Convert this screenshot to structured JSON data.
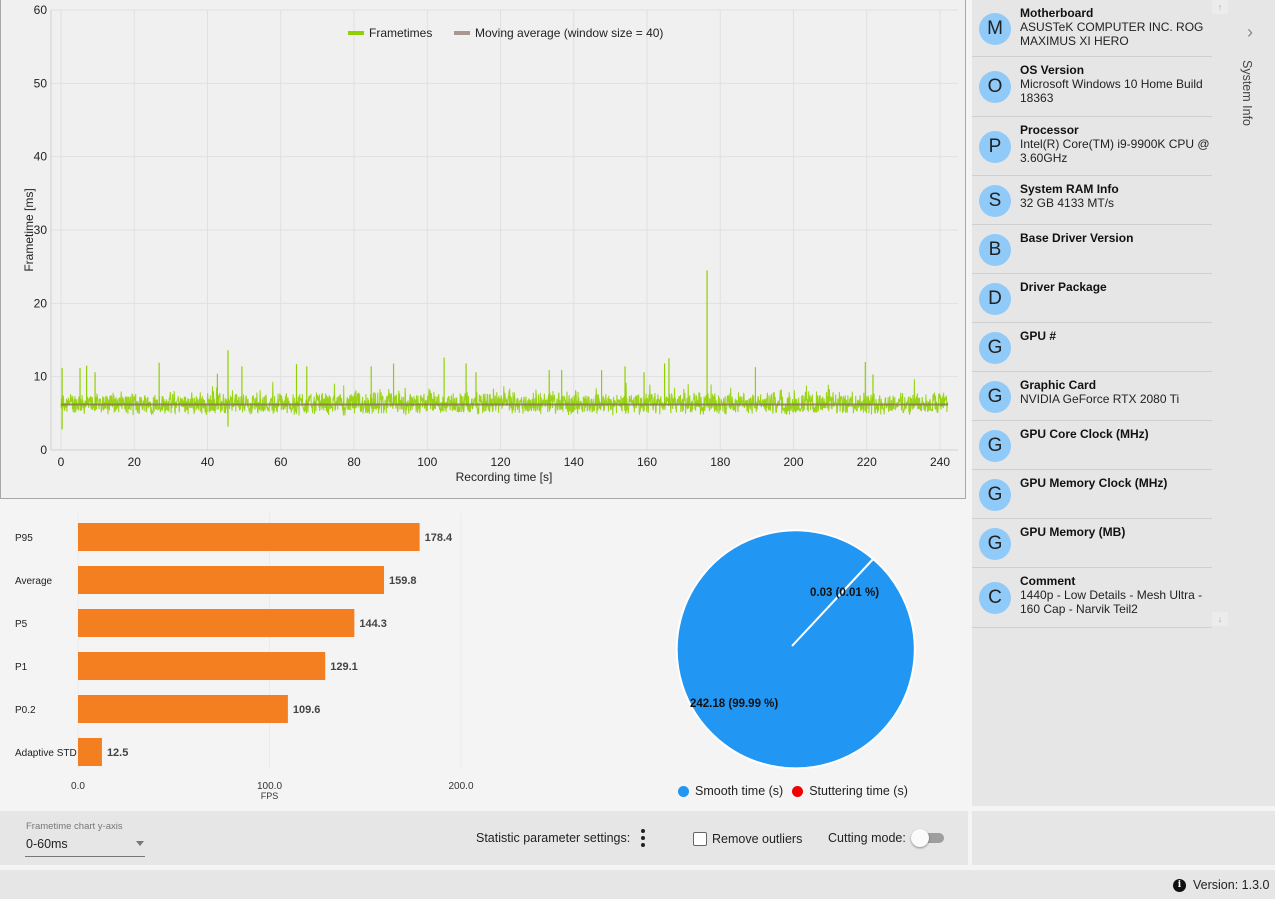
{
  "frametime_chart": {
    "type": "line",
    "title": "",
    "xlabel": "Recording time [s]",
    "ylabel": "Frametime [ms]",
    "xlim": [
      0,
      242.2
    ],
    "ylim": [
      0,
      60
    ],
    "xticks": [
      0,
      20,
      40,
      60,
      80,
      100,
      120,
      140,
      160,
      180,
      200,
      220,
      240
    ],
    "yticks": [
      0,
      10,
      20,
      30,
      40,
      50,
      60
    ],
    "grid": true,
    "legend": {
      "placement": "top-center",
      "entries": [
        {
          "name": "Frametimes",
          "color": "#8fd000"
        },
        {
          "name": "Moving average (window size = 40)",
          "color": "#a89890"
        }
      ]
    },
    "series_summary": {
      "baseline_ms": 6.2,
      "typical_range_ms": [
        4.5,
        8.5
      ],
      "spikes": [
        {
          "t": 0.3,
          "ms": 11.2
        },
        {
          "t": 0.3,
          "ms": 2.8
        },
        {
          "t": 5.2,
          "ms": 11.2
        },
        {
          "t": 7.0,
          "ms": 11.5
        },
        {
          "t": 9.3,
          "ms": 10.6
        },
        {
          "t": 26.8,
          "ms": 11.9
        },
        {
          "t": 42.7,
          "ms": 10.4
        },
        {
          "t": 45.6,
          "ms": 13.6
        },
        {
          "t": 45.6,
          "ms": 3.2
        },
        {
          "t": 49.4,
          "ms": 11.4
        },
        {
          "t": 64.3,
          "ms": 11.7
        },
        {
          "t": 67.1,
          "ms": 11.4
        },
        {
          "t": 84.7,
          "ms": 11.4
        },
        {
          "t": 90.8,
          "ms": 11.8
        },
        {
          "t": 104.6,
          "ms": 12.6
        },
        {
          "t": 110.6,
          "ms": 11.8
        },
        {
          "t": 113.3,
          "ms": 10.6
        },
        {
          "t": 133.3,
          "ms": 10.9
        },
        {
          "t": 136.7,
          "ms": 10.9
        },
        {
          "t": 147.6,
          "ms": 10.9
        },
        {
          "t": 154.0,
          "ms": 11.4
        },
        {
          "t": 159.2,
          "ms": 10.6
        },
        {
          "t": 164.8,
          "ms": 11.8
        },
        {
          "t": 166.0,
          "ms": 12.5
        },
        {
          "t": 176.4,
          "ms": 24.5
        },
        {
          "t": 189.6,
          "ms": 11.3
        },
        {
          "t": 219.6,
          "ms": 12.0
        },
        {
          "t": 221.7,
          "ms": 10.3
        }
      ]
    }
  },
  "chart_data": [
    {
      "type": "bar",
      "orientation": "horizontal",
      "categories": [
        "P95",
        "Average",
        "P5",
        "P1",
        "P0.2",
        "Adaptive STD"
      ],
      "values": [
        178.4,
        159.8,
        144.3,
        129.1,
        109.6,
        12.5
      ],
      "value_labels": [
        "178.4",
        "159.8",
        "144.3",
        "129.1",
        "109.6",
        "12.5"
      ],
      "xlabel": "FPS",
      "xlim": [
        0,
        200
      ],
      "xticks": [
        "0.0",
        "100.0",
        "200.0"
      ],
      "color": "#f37f21",
      "grid": true
    },
    {
      "type": "pie",
      "labels": [
        "Smooth time (s)",
        "Stuttering time (s)"
      ],
      "values": [
        242.18,
        0.03
      ],
      "slice_labels": [
        "242.18 (99.99 %)",
        "0.03 (0.01 %)"
      ],
      "colors": [
        "#2196f3",
        "#f00000"
      ],
      "legend": "bottom"
    }
  ],
  "system_info": {
    "label": "System Info",
    "items": [
      {
        "letter": "M",
        "title": "Motherboard",
        "value": "ASUSTeK COMPUTER INC. ROG MAXIMUS XI HERO"
      },
      {
        "letter": "O",
        "title": "OS Version",
        "value": "Microsoft Windows 10 Home Build 18363"
      },
      {
        "letter": "P",
        "title": "Processor",
        "value": "Intel(R) Core(TM) i9-9900K CPU @ 3.60GHz"
      },
      {
        "letter": "S",
        "title": "System RAM Info",
        "value": "32 GB 4133 MT/s"
      },
      {
        "letter": "B",
        "title": "Base Driver Version",
        "value": ""
      },
      {
        "letter": "D",
        "title": "Driver Package",
        "value": ""
      },
      {
        "letter": "G",
        "title": "GPU #",
        "value": ""
      },
      {
        "letter": "G",
        "title": "Graphic Card",
        "value": "NVIDIA GeForce RTX 2080 Ti"
      },
      {
        "letter": "G",
        "title": "GPU Core Clock (MHz)",
        "value": ""
      },
      {
        "letter": "G",
        "title": "GPU Memory Clock (MHz)",
        "value": ""
      },
      {
        "letter": "G",
        "title": "GPU Memory (MB)",
        "value": ""
      },
      {
        "letter": "C",
        "title": "Comment",
        "value": "1440p - Low Details - Mesh Ultra - 160 Cap - Narvik Teil2"
      }
    ]
  },
  "toolbar": {
    "yaxis_dropdown_label": "Frametime chart y-axis",
    "yaxis_dropdown_value": "0-60ms",
    "stat_settings_label": "Statistic parameter settings:",
    "remove_outliers_label": "Remove outliers",
    "remove_outliers_checked": false,
    "cutting_mode_label": "Cutting mode:",
    "cutting_mode_on": false
  },
  "status": {
    "version_label": "Version:",
    "version": "1.3.0"
  }
}
